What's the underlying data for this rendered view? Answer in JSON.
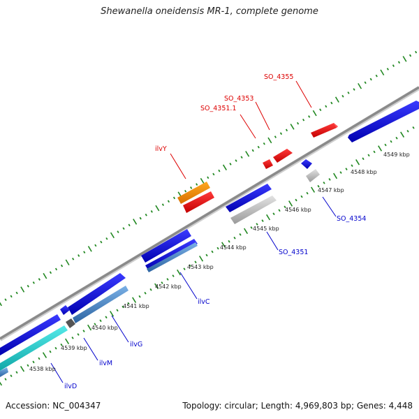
{
  "title": "Shewanella oneidensis MR-1, complete genome",
  "footer": {
    "accession": "Accession: NC_004347",
    "summary": "Topology: circular; Length: 4,969,803 bp; Genes: 4,448"
  },
  "scale_labels": [
    "4538 kbp",
    "4539 kbp",
    "4540 kbp",
    "4541 kbp",
    "4542 kbp",
    "4543 kbp",
    "4544 kbp",
    "4545 kbp",
    "4546 kbp",
    "4547 kbp",
    "4548 kbp",
    "4549 kbp"
  ],
  "gene_labels": [
    {
      "text": "SO_4355",
      "color": "#dd0000"
    },
    {
      "text": "SO_4353",
      "color": "#dd0000"
    },
    {
      "text": "SO_4351.1",
      "color": "#dd0000"
    },
    {
      "text": "ilvY",
      "color": "#dd0000"
    },
    {
      "text": "SO_4354",
      "color": "#0000cc"
    },
    {
      "text": "SO_4351",
      "color": "#0000cc"
    },
    {
      "text": "ilvC",
      "color": "#0000cc"
    },
    {
      "text": "ilvG",
      "color": "#0000cc"
    },
    {
      "text": "ilvM",
      "color": "#0000cc"
    },
    {
      "text": "ilvD",
      "color": "#0000cc"
    }
  ],
  "colors": {
    "forward_gene": "#ee1111",
    "regulator_gene": "#ee8800",
    "reverse_gene": "#1111dd",
    "pseudo_gene": "#bbbbbb",
    "cyan_gene": "#22cccc",
    "steel_gene": "#4a86c4",
    "backbone": "#8a8a8a",
    "tick": "#228822"
  }
}
